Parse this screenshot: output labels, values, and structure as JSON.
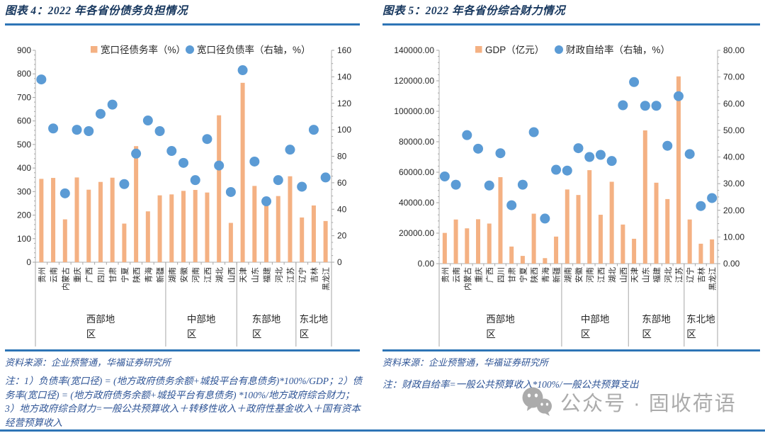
{
  "panels": [
    {
      "title": "图表 4：2022 年各省份债务负担情况",
      "source": "资料来源：企业预警通，华福证券研究所",
      "note": "注：1）负债率(宽口径) = (地方政府债务余额+城投平台有息债务)*100%/GDP；2）债务率(宽口径) = (地方政府债务余额+城投平台有息债务) *100%/地方政府综合财力；3）地方政府综合财力=一般公共预算收入＋转移性收入＋政府性基金收入＋国有资本经营预算收入"
    },
    {
      "title": "图表 5：2022 年各省份综合财力情况",
      "source": "资料来源：企业预警通，华福证券研究所",
      "note": "注：财政自给率=一般公共预算收入*100%/一般公共预算支出"
    }
  ],
  "watermark": {
    "icon": "wechat-icon",
    "text": "公众号 · 固收荷语"
  },
  "colors": {
    "bar": "#F4B183",
    "dot": "#5B9BD5",
    "rule": "#2E75B6",
    "title_text": "#17375E",
    "footer_text": "#2E5496",
    "axis_line": "#BFBFBF",
    "tick": "#A6A6A6",
    "axis_text": "#262626",
    "watermark_gray": "#ABABAB"
  },
  "chart_data": [
    {
      "type": "bar",
      "title": "图表 4：2022 年各省份债务负担情况",
      "legend": [
        "宽口径债务率（%）",
        "宽口径负债率（右轴，%）"
      ],
      "legend_position": "top-inside",
      "grid": false,
      "categories": [
        "贵州",
        "云南",
        "内蒙古",
        "重庆",
        "广西",
        "四川",
        "甘肃",
        "宁夏",
        "陕西",
        "青海",
        "新疆",
        "湖南",
        "安徽",
        "河南",
        "江西",
        "湖北",
        "山西",
        "天津",
        "山东",
        "福建",
        "河北",
        "江苏",
        "辽宁",
        "吉林",
        "黑龙江"
      ],
      "region_groups": [
        {
          "label": "西部地区",
          "count": 11
        },
        {
          "label": "中部地区",
          "count": 6
        },
        {
          "label": "东部地区",
          "count": 5
        },
        {
          "label": "东北地区",
          "count": 3
        }
      ],
      "series": [
        {
          "name": "宽口径债务率（%）",
          "type": "bar",
          "axis": "left",
          "color": "#F4B183",
          "values": [
            354,
            358,
            182,
            360,
            308,
            341,
            359,
            164,
            493,
            216,
            284,
            288,
            303,
            307,
            296,
            624,
            167,
            762,
            324,
            246,
            281,
            365,
            190,
            241,
            175
          ]
        },
        {
          "name": "宽口径负债率（右轴，%）",
          "type": "scatter",
          "axis": "right",
          "color": "#5B9BD5",
          "values": [
            138,
            101,
            52,
            100,
            99,
            112,
            119,
            59,
            82,
            107,
            99,
            84,
            75,
            62,
            93,
            73,
            53,
            145,
            76,
            46,
            62,
            85,
            57,
            100,
            64
          ]
        }
      ],
      "left_axis": {
        "min": 0,
        "max": 900,
        "step": 100,
        "decimals": 0
      },
      "right_axis": {
        "min": 0,
        "max": 160,
        "step": 20,
        "decimals": 0
      }
    },
    {
      "type": "bar",
      "title": "图表 5：2022 年各省份综合财力情况",
      "legend": [
        "GDP（亿元）",
        "财政自给率（右轴，%）"
      ],
      "legend_position": "top-inside",
      "grid": false,
      "categories": [
        "贵州",
        "云南",
        "内蒙古",
        "重庆",
        "广西",
        "四川",
        "甘肃",
        "宁夏",
        "陕西",
        "青海",
        "新疆",
        "湖南",
        "安徽",
        "河南",
        "江西",
        "湖北",
        "山西",
        "天津",
        "山东",
        "福建",
        "河北",
        "江苏",
        "辽宁",
        "吉林",
        "黑龙江"
      ],
      "region_groups": [
        {
          "label": "西部地区",
          "count": 11
        },
        {
          "label": "中部地区",
          "count": 6
        },
        {
          "label": "东部地区",
          "count": 5
        },
        {
          "label": "东北地区",
          "count": 3
        }
      ],
      "series": [
        {
          "name": "GDP（亿元）",
          "type": "bar",
          "axis": "left",
          "color": "#F4B183",
          "values": [
            20165,
            28954,
            23159,
            29129,
            26301,
            56750,
            11202,
            5070,
            32773,
            3610,
            17741,
            48670,
            45045,
            61345,
            32075,
            53735,
            25643,
            16311,
            87435,
            53110,
            42370,
            122876,
            28975,
            13070,
            15901
          ]
        },
        {
          "name": "财政自给率（右轴，%）",
          "type": "scatter",
          "axis": "right",
          "color": "#5B9BD5",
          "values": [
            32.7,
            29.6,
            48.2,
            43.1,
            29.3,
            41.4,
            21.9,
            29.6,
            49.3,
            16.9,
            35.2,
            34.9,
            43.3,
            40.0,
            40.8,
            38.5,
            59.4,
            68.1,
            59.2,
            59.2,
            44.2,
            62.8,
            41.1,
            21.6,
            24.6
          ]
        }
      ],
      "left_axis": {
        "min": 0,
        "max": 140000,
        "step": 20000,
        "decimals": 2
      },
      "right_axis": {
        "min": 0,
        "max": 80,
        "step": 10,
        "decimals": 2
      }
    }
  ]
}
